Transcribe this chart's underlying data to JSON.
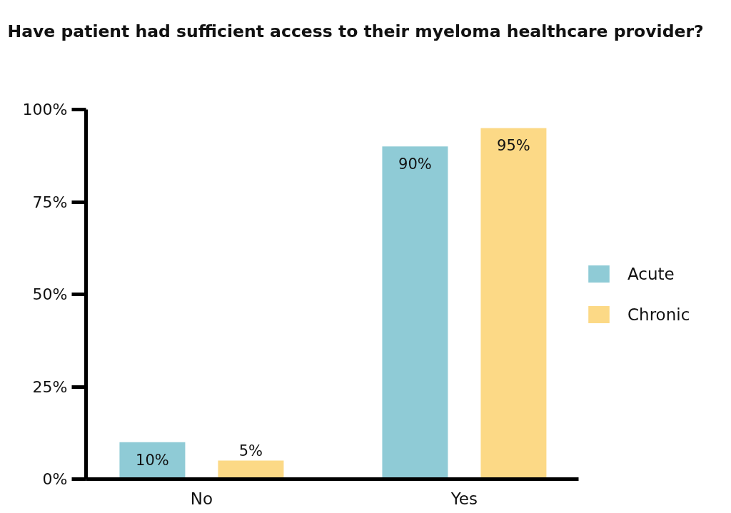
{
  "chart_data": {
    "type": "bar",
    "title": "Have patient had sufficient access to their myeloma healthcare provider?",
    "categories": [
      "No",
      "Yes"
    ],
    "series": [
      {
        "name": "Acute",
        "color": "#8fcbd6",
        "values": [
          10,
          90
        ],
        "value_labels": [
          "10%",
          "90%"
        ]
      },
      {
        "name": "Chronic",
        "color": "#fcd986",
        "values": [
          5,
          95
        ],
        "value_labels": [
          "5%",
          "95%"
        ]
      }
    ],
    "ylim": [
      0,
      100
    ],
    "yticks": [
      {
        "value": 0,
        "label": "0%"
      },
      {
        "value": 25,
        "label": "25%"
      },
      {
        "value": 50,
        "label": "50%"
      },
      {
        "value": 75,
        "label": "75%"
      },
      {
        "value": 100,
        "label": "100%"
      }
    ],
    "legend": "right"
  }
}
